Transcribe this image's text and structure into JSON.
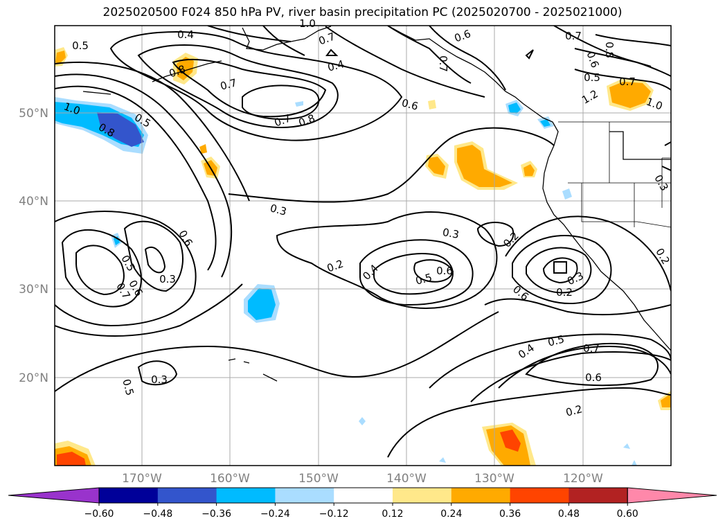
{
  "title": "2025020500 F024 850 hPa PV, river basin precipitation PC (2025020700 - 2025021000)",
  "latitude_labels": [
    "50°N",
    "40°N",
    "30°N",
    "20°N"
  ],
  "longitude_labels": [
    "170°W",
    "160°W",
    "150°W",
    "140°W",
    "130°W",
    "120°W"
  ],
  "contour_labels": [
    "0.5",
    "0.4",
    "0.7",
    "0.6",
    "1.0",
    "0.7",
    "0.8",
    "0.6",
    "0.5",
    "0.7",
    "1.2",
    "1.0",
    "0.7",
    "0.8",
    "0.4",
    "0.6",
    "0.7",
    "0.8",
    "0.5",
    "1.0",
    "0.8",
    "0.7",
    "0.3",
    "0.6",
    "0.3",
    "0.5",
    "0.7",
    "0.6",
    "0.2",
    "0.4",
    "0.3",
    "0.5",
    "0.6",
    "0.2",
    "0.3",
    "0.5",
    "0.6",
    "0.2",
    "0.3",
    "0.4",
    "0.5",
    "0.7",
    "0.6",
    "0.2",
    "0.2",
    "0.3"
  ],
  "colorbar": {
    "ticks": [
      "−0.60",
      "−0.48",
      "−0.36",
      "−0.24",
      "−0.12",
      "0.12",
      "0.24",
      "0.36",
      "0.48",
      "0.60"
    ],
    "colors": [
      "#9933cc",
      "#000099",
      "#3355cc",
      "#00bbff",
      "#aaddff",
      "#ffffff",
      "#ffe88a",
      "#ffaa00",
      "#ff4400",
      "#b22222",
      "#ff88aa"
    ]
  },
  "colors": {
    "positive_fill": "#ffaa00",
    "positive_light": "#ffe88a",
    "positive_dark": "#ff4400",
    "negative_fill": "#00bbff",
    "negative_light": "#aaddff",
    "negative_dark": "#3355cc",
    "grid": "#aaaaaa",
    "contour": "#000000"
  }
}
